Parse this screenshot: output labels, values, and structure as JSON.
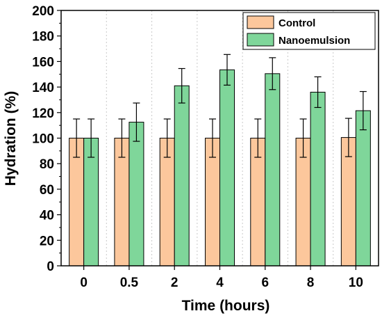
{
  "chart_data": {
    "type": "bar",
    "title": "",
    "xlabel": "Time (hours)",
    "ylabel": "Hydration (%)",
    "ylim": [
      0,
      200
    ],
    "yticks": [
      0,
      20,
      40,
      60,
      80,
      100,
      120,
      140,
      160,
      180,
      200
    ],
    "categories": [
      "0",
      "0.5",
      "2",
      "4",
      "6",
      "8",
      "10"
    ],
    "series": [
      {
        "name": "Control",
        "color": "#FCC79C",
        "values": [
          100,
          100,
          100,
          100,
          100,
          100,
          100.5
        ],
        "errors": [
          15,
          15,
          15,
          15,
          15,
          15,
          15
        ]
      },
      {
        "name": "Nanoemulsion",
        "color": "#7FD69A",
        "values": [
          100,
          112.5,
          141,
          153.5,
          150.5,
          136,
          121.5
        ],
        "errors": [
          15,
          15,
          13.5,
          12,
          12.5,
          12,
          15
        ]
      }
    ],
    "legend": "top-right",
    "grid": "vertical dashed"
  }
}
